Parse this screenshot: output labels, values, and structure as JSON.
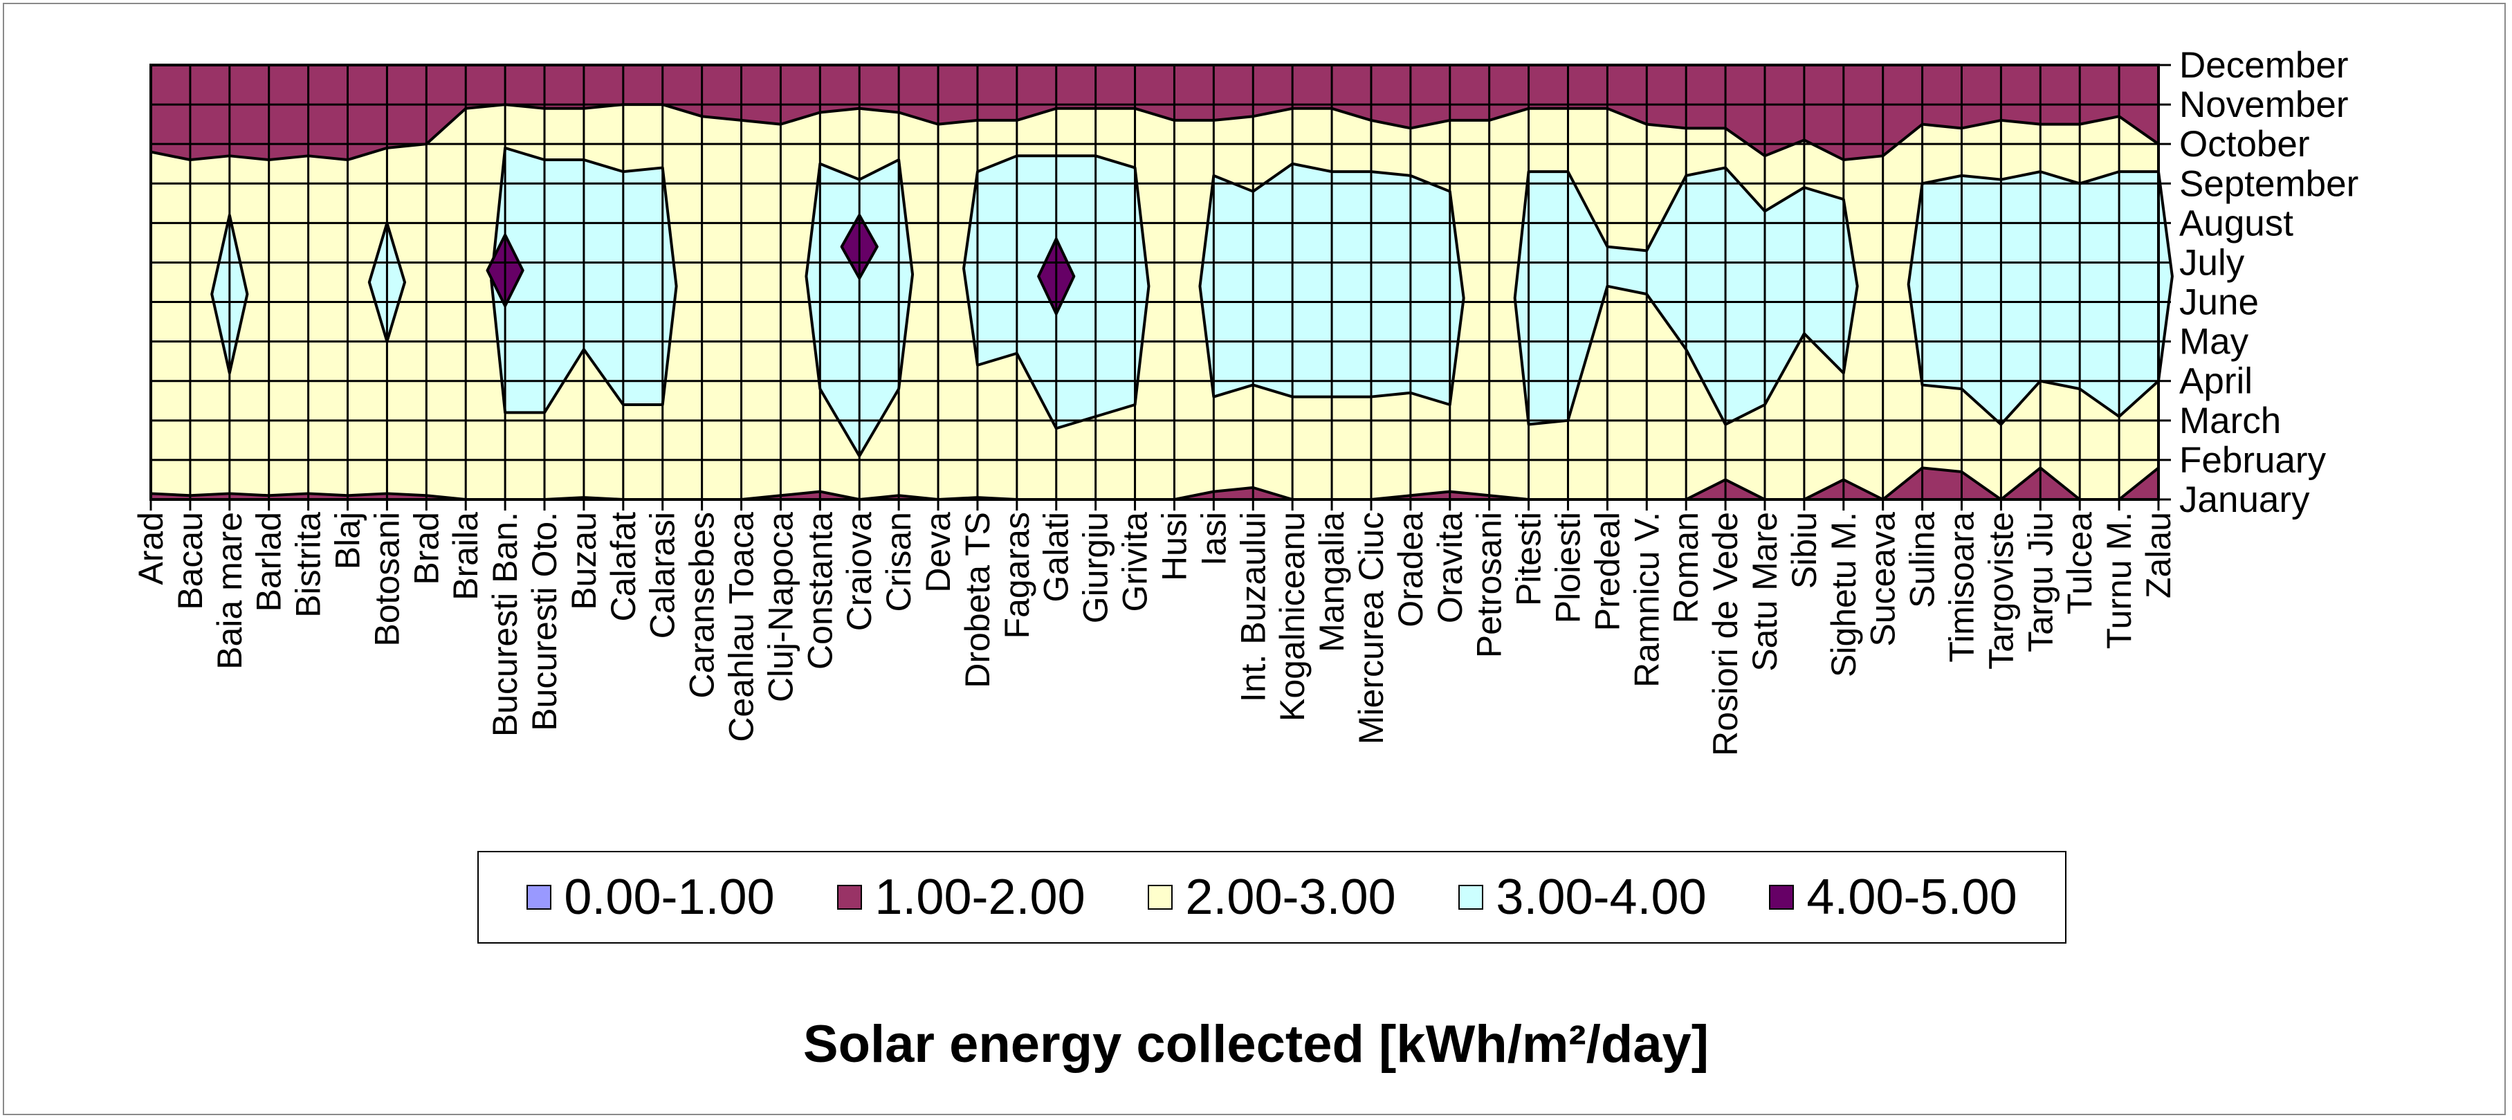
{
  "chart_data": {
    "type": "contour",
    "title": "Solar energy collected [kWh/m²/day]",
    "x_categories": [
      "Arad",
      "Bacau",
      "Baia mare",
      "Barlad",
      "Bistrita",
      "Blaj",
      "Botosani",
      "Brad",
      "Braila",
      "Bucuresti Ban.",
      "Bucuresti Oto.",
      "Buzau",
      "Calafat",
      "Calarasi",
      "Caransebes",
      "Ceahlau Toaca",
      "Cluj-Napoca",
      "Constanta",
      "Craiova",
      "Crisan",
      "Deva",
      "Drobeta TS",
      "Fagaras",
      "Galati",
      "Giurgiu",
      "Grivita",
      "Husi",
      "Iasi",
      "Int. Buzaului",
      "Kogalniceanu",
      "Mangalia",
      "Miercurea Ciuc",
      "Oradea",
      "Oravita",
      "Petrosani",
      "Pitesti",
      "Ploiesti",
      "Predeal",
      "Ramnicu V.",
      "Roman",
      "Rosiori de Vede",
      "Satu Mare",
      "Sibiu",
      "Sighetu M.",
      "Suceava",
      "Sulina",
      "Timisoara",
      "Targoviste",
      "Targu Jiu",
      "Tulcea",
      "Turnu M.",
      "Zalau"
    ],
    "y_categories": [
      "January",
      "February",
      "March",
      "April",
      "May",
      "June",
      "July",
      "August",
      "September",
      "October",
      "November",
      "December"
    ],
    "legend": [
      {
        "label": "0.00-1.00",
        "color": "#9999ff"
      },
      {
        "label": "1.00-2.00",
        "color": "#993366"
      },
      {
        "label": "2.00-3.00",
        "color": "#ffffcc"
      },
      {
        "label": "3.00-4.00",
        "color": "#ccffff"
      },
      {
        "label": "4.00-5.00",
        "color": "#660066"
      }
    ],
    "level_boundaries": {
      "lower_2": [
        0.15,
        0.1,
        0.15,
        0.1,
        0.15,
        0.1,
        0.15,
        0.1,
        0.0,
        0.0,
        0.0,
        0.05,
        0.0,
        0.0,
        0.0,
        0.0,
        0.1,
        0.2,
        0.0,
        0.1,
        0.0,
        0.05,
        0.0,
        0.0,
        0.0,
        0.0,
        0.0,
        0.2,
        0.3,
        0.0,
        0.0,
        0.0,
        0.1,
        0.2,
        0.1,
        0.0,
        0.0,
        0.0,
        0.0,
        0.0,
        0.5,
        0.0,
        0.0,
        0.5,
        0.0,
        0.8,
        0.7,
        0.0,
        0.8,
        0.0,
        0.0,
        0.8
      ],
      "lower_3": [
        null,
        null,
        3.2,
        null,
        null,
        null,
        4.0,
        null,
        null,
        2.2,
        2.2,
        3.8,
        2.4,
        2.4,
        null,
        null,
        null,
        2.8,
        1.1,
        2.8,
        null,
        3.4,
        3.7,
        1.8,
        2.1,
        2.4,
        null,
        2.6,
        2.9,
        2.6,
        2.6,
        2.6,
        2.7,
        2.4,
        null,
        1.9,
        2.0,
        5.4,
        5.2,
        3.8,
        1.9,
        2.4,
        4.2,
        3.2,
        null,
        2.9,
        2.8,
        1.9,
        3.0,
        2.8,
        2.1,
        3.0
      ],
      "upper_3": [
        null,
        null,
        7.2,
        null,
        null,
        null,
        7.0,
        null,
        null,
        8.9,
        8.6,
        8.6,
        8.3,
        8.4,
        null,
        null,
        null,
        8.5,
        8.1,
        8.6,
        null,
        8.3,
        8.7,
        8.7,
        8.7,
        8.4,
        null,
        8.2,
        7.8,
        8.5,
        8.3,
        8.3,
        8.2,
        7.8,
        null,
        8.3,
        8.3,
        6.4,
        6.3,
        8.2,
        8.4,
        7.3,
        7.9,
        7.6,
        null,
        8.0,
        8.2,
        8.1,
        8.3,
        8.0,
        8.3,
        8.3
      ],
      "upper_2": [
        8.8,
        8.6,
        8.7,
        8.6,
        8.7,
        8.6,
        8.9,
        9.0,
        9.9,
        10.0,
        9.9,
        9.9,
        10.0,
        10.0,
        9.7,
        9.6,
        9.5,
        9.8,
        9.9,
        9.8,
        9.5,
        9.6,
        9.6,
        9.9,
        9.9,
        9.9,
        9.6,
        9.6,
        9.7,
        9.9,
        9.9,
        9.6,
        9.4,
        9.6,
        9.6,
        9.9,
        9.9,
        9.9,
        9.5,
        9.4,
        9.4,
        8.7,
        9.1,
        8.6,
        8.7,
        9.5,
        9.4,
        9.6,
        9.5,
        9.5,
        9.7,
        9.0
      ],
      "lower_4": [
        null,
        null,
        null,
        null,
        null,
        null,
        null,
        null,
        null,
        4.9,
        null,
        null,
        null,
        null,
        null,
        null,
        null,
        null,
        5.6,
        null,
        null,
        null,
        null,
        4.7,
        null,
        null,
        null,
        null,
        null,
        null,
        null,
        null,
        null,
        null,
        null,
        null,
        null,
        null,
        null,
        null,
        null,
        null,
        null,
        null,
        null,
        null,
        null,
        null,
        null,
        null,
        null,
        null
      ],
      "upper_4": [
        null,
        null,
        null,
        null,
        null,
        null,
        null,
        null,
        null,
        6.7,
        null,
        null,
        null,
        null,
        null,
        null,
        null,
        null,
        7.2,
        null,
        null,
        null,
        null,
        6.6,
        null,
        null,
        null,
        null,
        null,
        null,
        null,
        null,
        null,
        null,
        null,
        null,
        null,
        null,
        null,
        null,
        null,
        null,
        null,
        null,
        null,
        null,
        null,
        null,
        null,
        null,
        null,
        null
      ]
    },
    "xlabel": "",
    "ylabel": "",
    "grid": true
  }
}
